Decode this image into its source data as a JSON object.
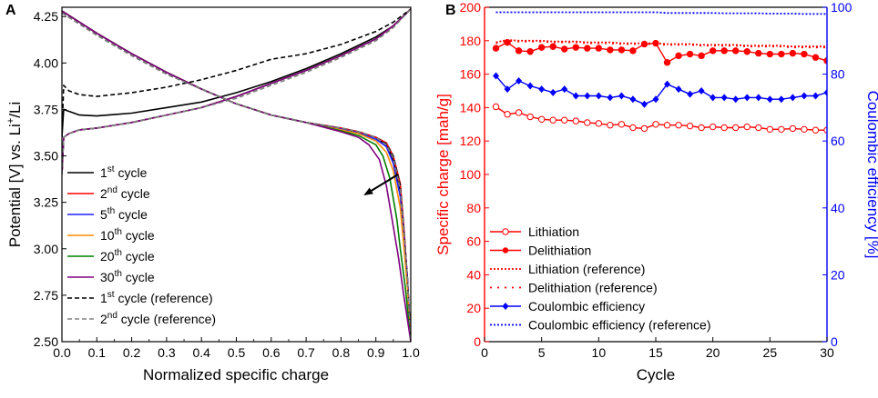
{
  "chart_data": [
    {
      "panel": "A",
      "type": "line",
      "xlabel": "Normalized specific charge",
      "ylabel_parts": [
        "Potential [V] vs. Li",
        "+",
        "/Li"
      ],
      "xlim": [
        0.0,
        1.0
      ],
      "ylim": [
        2.5,
        4.3
      ],
      "xticks": [
        "0.0",
        "0.1",
        "0.2",
        "0.3",
        "0.4",
        "0.5",
        "0.6",
        "0.7",
        "0.8",
        "0.9",
        "1.0"
      ],
      "yticks": [
        "2.50",
        "2.75",
        "3.00",
        "3.25",
        "3.50",
        "3.75",
        "4.00",
        "4.25"
      ],
      "annotation": "arrow indicating decrease with cycle number",
      "series": [
        {
          "name": "1st cycle",
          "label_main": "1",
          "label_sup": "st",
          "label_rest": " cycle",
          "color": "#000000",
          "dash": "solid",
          "charge_x": [
            0.0,
            0.005,
            0.02,
            0.05,
            0.1,
            0.2,
            0.3,
            0.4,
            0.5,
            0.6,
            0.7,
            0.8,
            0.9,
            0.95,
            1.0
          ],
          "charge_y": [
            3.6,
            3.75,
            3.74,
            3.72,
            3.715,
            3.73,
            3.76,
            3.79,
            3.84,
            3.9,
            3.97,
            4.05,
            4.14,
            4.2,
            4.29
          ],
          "discharge_x": [
            0.0,
            0.1,
            0.2,
            0.3,
            0.4,
            0.5,
            0.6,
            0.7,
            0.8,
            0.85,
            0.9,
            0.93,
            0.95,
            0.97,
            0.98,
            0.99,
            1.0
          ],
          "discharge_y": [
            4.28,
            4.16,
            4.05,
            3.95,
            3.86,
            3.78,
            3.72,
            3.68,
            3.65,
            3.63,
            3.6,
            3.56,
            3.48,
            3.3,
            3.1,
            2.85,
            2.5
          ]
        },
        {
          "name": "2nd cycle",
          "label_main": "2",
          "label_sup": "nd",
          "label_rest": " cycle",
          "color": "#ff0000",
          "dash": "solid",
          "charge_x": [
            0.0,
            0.005,
            0.02,
            0.05,
            0.1,
            0.2,
            0.3,
            0.4,
            0.5,
            0.6,
            0.7,
            0.8,
            0.9,
            0.95,
            1.0
          ],
          "charge_y": [
            3.4,
            3.6,
            3.62,
            3.64,
            3.65,
            3.68,
            3.72,
            3.76,
            3.82,
            3.89,
            3.96,
            4.04,
            4.13,
            4.2,
            4.29
          ],
          "discharge_x": [
            0.0,
            0.1,
            0.2,
            0.3,
            0.4,
            0.5,
            0.6,
            0.7,
            0.8,
            0.85,
            0.9,
            0.93,
            0.95,
            0.97,
            0.98,
            0.99,
            1.0
          ],
          "discharge_y": [
            4.28,
            4.16,
            4.05,
            3.95,
            3.86,
            3.78,
            3.72,
            3.68,
            3.65,
            3.63,
            3.6,
            3.57,
            3.5,
            3.35,
            3.12,
            2.85,
            2.5
          ]
        },
        {
          "name": "5th cycle",
          "label_main": "5",
          "label_sup": "th",
          "label_rest": " cycle",
          "color": "#1f1fff",
          "dash": "solid",
          "charge_x": [
            0.0,
            0.005,
            0.02,
            0.05,
            0.1,
            0.2,
            0.3,
            0.4,
            0.5,
            0.6,
            0.7,
            0.8,
            0.9,
            0.95,
            1.0
          ],
          "charge_y": [
            3.4,
            3.6,
            3.62,
            3.64,
            3.65,
            3.68,
            3.72,
            3.76,
            3.82,
            3.89,
            3.96,
            4.04,
            4.13,
            4.2,
            4.29
          ],
          "discharge_x": [
            0.0,
            0.1,
            0.2,
            0.3,
            0.4,
            0.5,
            0.6,
            0.7,
            0.8,
            0.85,
            0.9,
            0.93,
            0.95,
            0.97,
            0.98,
            0.99,
            1.0
          ],
          "discharge_y": [
            4.28,
            4.16,
            4.05,
            3.95,
            3.86,
            3.78,
            3.72,
            3.68,
            3.645,
            3.625,
            3.59,
            3.55,
            3.46,
            3.28,
            3.08,
            2.85,
            2.5
          ]
        },
        {
          "name": "10th cycle",
          "label_main": "10",
          "label_sup": "th",
          "label_rest": " cycle",
          "color": "#ff8c00",
          "dash": "solid",
          "charge_x": [
            0.0,
            0.005,
            0.02,
            0.05,
            0.1,
            0.2,
            0.3,
            0.4,
            0.5,
            0.6,
            0.7,
            0.8,
            0.9,
            0.95,
            1.0
          ],
          "charge_y": [
            3.4,
            3.6,
            3.62,
            3.64,
            3.65,
            3.68,
            3.72,
            3.76,
            3.82,
            3.89,
            3.96,
            4.04,
            4.13,
            4.2,
            4.29
          ],
          "discharge_x": [
            0.0,
            0.1,
            0.2,
            0.3,
            0.4,
            0.5,
            0.6,
            0.7,
            0.8,
            0.85,
            0.9,
            0.93,
            0.95,
            0.97,
            0.98,
            0.99,
            1.0
          ],
          "discharge_y": [
            4.28,
            4.16,
            4.05,
            3.95,
            3.86,
            3.78,
            3.72,
            3.68,
            3.64,
            3.62,
            3.58,
            3.52,
            3.42,
            3.22,
            3.02,
            2.8,
            2.5
          ]
        },
        {
          "name": "20th cycle",
          "label_main": "20",
          "label_sup": "th",
          "label_rest": " cycle",
          "color": "#008000",
          "dash": "solid",
          "charge_x": [
            0.0,
            0.005,
            0.02,
            0.05,
            0.1,
            0.2,
            0.3,
            0.4,
            0.5,
            0.6,
            0.7,
            0.8,
            0.9,
            0.95,
            1.0
          ],
          "charge_y": [
            3.4,
            3.6,
            3.62,
            3.64,
            3.65,
            3.68,
            3.72,
            3.76,
            3.82,
            3.89,
            3.96,
            4.04,
            4.13,
            4.2,
            4.29
          ],
          "discharge_x": [
            0.0,
            0.1,
            0.2,
            0.3,
            0.4,
            0.5,
            0.6,
            0.7,
            0.8,
            0.85,
            0.9,
            0.92,
            0.94,
            0.96,
            0.97,
            0.985,
            1.0
          ],
          "discharge_y": [
            4.28,
            4.16,
            4.05,
            3.95,
            3.86,
            3.78,
            3.72,
            3.68,
            3.635,
            3.61,
            3.56,
            3.5,
            3.38,
            3.16,
            3.0,
            2.78,
            2.5
          ]
        },
        {
          "name": "30th cycle",
          "label_main": "30",
          "label_sup": "th",
          "label_rest": " cycle",
          "color": "#800080",
          "dash": "solid",
          "charge_x": [
            0.0,
            0.005,
            0.02,
            0.05,
            0.1,
            0.2,
            0.3,
            0.4,
            0.5,
            0.6,
            0.7,
            0.8,
            0.9,
            0.95,
            1.0
          ],
          "charge_y": [
            3.4,
            3.6,
            3.62,
            3.64,
            3.65,
            3.68,
            3.72,
            3.76,
            3.82,
            3.89,
            3.96,
            4.04,
            4.13,
            4.2,
            4.29
          ],
          "discharge_x": [
            0.0,
            0.1,
            0.2,
            0.3,
            0.4,
            0.5,
            0.6,
            0.7,
            0.8,
            0.85,
            0.88,
            0.91,
            0.93,
            0.95,
            0.965,
            0.98,
            1.0
          ],
          "discharge_y": [
            4.28,
            4.16,
            4.05,
            3.95,
            3.86,
            3.78,
            3.72,
            3.68,
            3.63,
            3.6,
            3.56,
            3.48,
            3.34,
            3.12,
            2.95,
            2.75,
            2.5
          ]
        },
        {
          "name": "1st cycle (reference)",
          "label_main": "1",
          "label_sup": "st",
          "label_rest": " cycle (reference)",
          "color": "#000000",
          "dash": "dashed",
          "charge_x": [
            0.0,
            0.005,
            0.02,
            0.05,
            0.1,
            0.2,
            0.3,
            0.4,
            0.5,
            0.6,
            0.7,
            0.8,
            0.9,
            0.95,
            1.0
          ],
          "charge_y": [
            3.6,
            3.88,
            3.85,
            3.83,
            3.82,
            3.84,
            3.87,
            3.91,
            3.96,
            4.02,
            4.05,
            4.1,
            4.17,
            4.22,
            4.29
          ],
          "discharge_x": [
            0.0,
            0.1,
            0.2,
            0.3,
            0.4,
            0.5,
            0.6,
            0.7,
            0.8,
            0.85,
            0.9,
            0.93,
            0.95,
            0.97,
            0.98,
            0.99,
            1.0
          ],
          "discharge_y": [
            4.27,
            4.15,
            4.04,
            3.94,
            3.86,
            3.78,
            3.72,
            3.68,
            3.65,
            3.63,
            3.6,
            3.565,
            3.5,
            3.34,
            3.12,
            2.85,
            2.5
          ]
        },
        {
          "name": "2nd cycle (reference)",
          "label_main": "2",
          "label_sup": "nd",
          "label_rest": " cycle (reference)",
          "color": "#808080",
          "dash": "dashed",
          "charge_x": [
            0.0,
            0.005,
            0.02,
            0.05,
            0.1,
            0.2,
            0.3,
            0.4,
            0.5,
            0.6,
            0.7,
            0.8,
            0.9,
            0.95,
            1.0
          ],
          "charge_y": [
            3.4,
            3.6,
            3.62,
            3.64,
            3.65,
            3.68,
            3.72,
            3.76,
            3.81,
            3.88,
            3.95,
            4.03,
            4.12,
            4.19,
            4.29
          ],
          "discharge_x": [
            0.0,
            0.1,
            0.2,
            0.3,
            0.4,
            0.5,
            0.6,
            0.7,
            0.8,
            0.85,
            0.9,
            0.93,
            0.95,
            0.97,
            0.98,
            0.99,
            1.0
          ],
          "discharge_y": [
            4.27,
            4.15,
            4.04,
            3.94,
            3.86,
            3.78,
            3.72,
            3.68,
            3.65,
            3.63,
            3.6,
            3.56,
            3.49,
            3.32,
            3.1,
            2.85,
            2.5
          ]
        }
      ]
    },
    {
      "panel": "B",
      "type": "line",
      "xlabel": "Cycle",
      "ylabel": "Specific charge [mah/g]",
      "ylabel_right": "Coulombic efficiency [%]",
      "xlim": [
        0,
        30
      ],
      "ylim": [
        0,
        200
      ],
      "ylim_right": [
        0,
        100
      ],
      "xticks": [
        "0",
        "5",
        "10",
        "15",
        "20",
        "25",
        "30"
      ],
      "yticks": [
        "0",
        "20",
        "40",
        "60",
        "80",
        "100",
        "120",
        "140",
        "160",
        "180",
        "200"
      ],
      "yticks_right": [
        "0",
        "20",
        "40",
        "60",
        "80",
        "100"
      ],
      "x": [
        1,
        2,
        3,
        4,
        5,
        6,
        7,
        8,
        9,
        10,
        11,
        12,
        13,
        14,
        15,
        16,
        17,
        18,
        19,
        20,
        21,
        22,
        23,
        24,
        25,
        26,
        27,
        28,
        29,
        30
      ],
      "series": [
        {
          "name": "Lithiation",
          "axis": "left",
          "color": "#ff0000",
          "dash": "solid",
          "marker": "open-circle",
          "values": [
            140.5,
            136,
            137,
            134.5,
            133,
            132.5,
            132.5,
            132,
            131,
            130.5,
            129.5,
            130,
            128,
            127.5,
            130,
            129.5,
            129.5,
            129,
            128,
            128.5,
            128,
            128,
            128.5,
            128,
            127,
            127,
            127.5,
            127,
            126.5,
            126.5
          ]
        },
        {
          "name": "Delithiation",
          "axis": "left",
          "color": "#ff0000",
          "dash": "solid",
          "marker": "filled-circle",
          "values": [
            175.5,
            179,
            174,
            173.5,
            176,
            176.5,
            175,
            176,
            175.5,
            175.5,
            174.5,
            174.5,
            174,
            178,
            178.5,
            167,
            171,
            172,
            171,
            174,
            174,
            174,
            173.5,
            172.5,
            172,
            172,
            172.5,
            172,
            170,
            168
          ]
        },
        {
          "name": "Lithiation (reference)",
          "axis": "left",
          "color": "#ff0000",
          "dash": "dotted",
          "marker": "none",
          "values": [
            179,
            180.5,
            180,
            180,
            180,
            179.5,
            179.5,
            179.5,
            179,
            179,
            179,
            178.5,
            178.5,
            178.5,
            178.5,
            178,
            178,
            178,
            177.5,
            177.5,
            177.5,
            177.5,
            177,
            177,
            177,
            177,
            176.5,
            176.5,
            176.5,
            176.5
          ]
        },
        {
          "name": "Delithiation (reference)",
          "axis": "left",
          "color": "#ff0000",
          "dash": "sparse-dotted",
          "marker": "none",
          "values": [
            178.5,
            180,
            179.5,
            179.5,
            179.5,
            179,
            179,
            179,
            178.5,
            178.5,
            178.5,
            178,
            178,
            178,
            178,
            177.5,
            177.5,
            177.5,
            177,
            177,
            177,
            177,
            176.5,
            176.5,
            176.5,
            176.5,
            176,
            176,
            176,
            176
          ]
        },
        {
          "name": "Coulombic efficiency",
          "axis": "right",
          "color": "#0000ff",
          "dash": "solid",
          "marker": "filled-diamond",
          "values": [
            79.5,
            75.5,
            78,
            76.5,
            75.5,
            74.5,
            75.5,
            73.5,
            73.5,
            73.5,
            73,
            73.5,
            72.5,
            71,
            72.5,
            77,
            75.5,
            74,
            75,
            73,
            73,
            72.5,
            73,
            73,
            72.5,
            72.5,
            73,
            73.5,
            73.5,
            74.5
          ]
        },
        {
          "name": "Coulombic efficiency (reference)",
          "axis": "right",
          "color": "#0000ff",
          "dash": "dotted",
          "marker": "none",
          "values": [
            98.5,
            98.5,
            98.5,
            98.5,
            98.5,
            98.5,
            98.5,
            98.5,
            98.5,
            98.5,
            98.5,
            98.5,
            98.5,
            98.5,
            98.5,
            98.3,
            98.3,
            98.3,
            98.3,
            98.3,
            98.2,
            98.2,
            98.2,
            98.2,
            98.1,
            98.1,
            98.1,
            98,
            98,
            98
          ]
        }
      ]
    }
  ]
}
